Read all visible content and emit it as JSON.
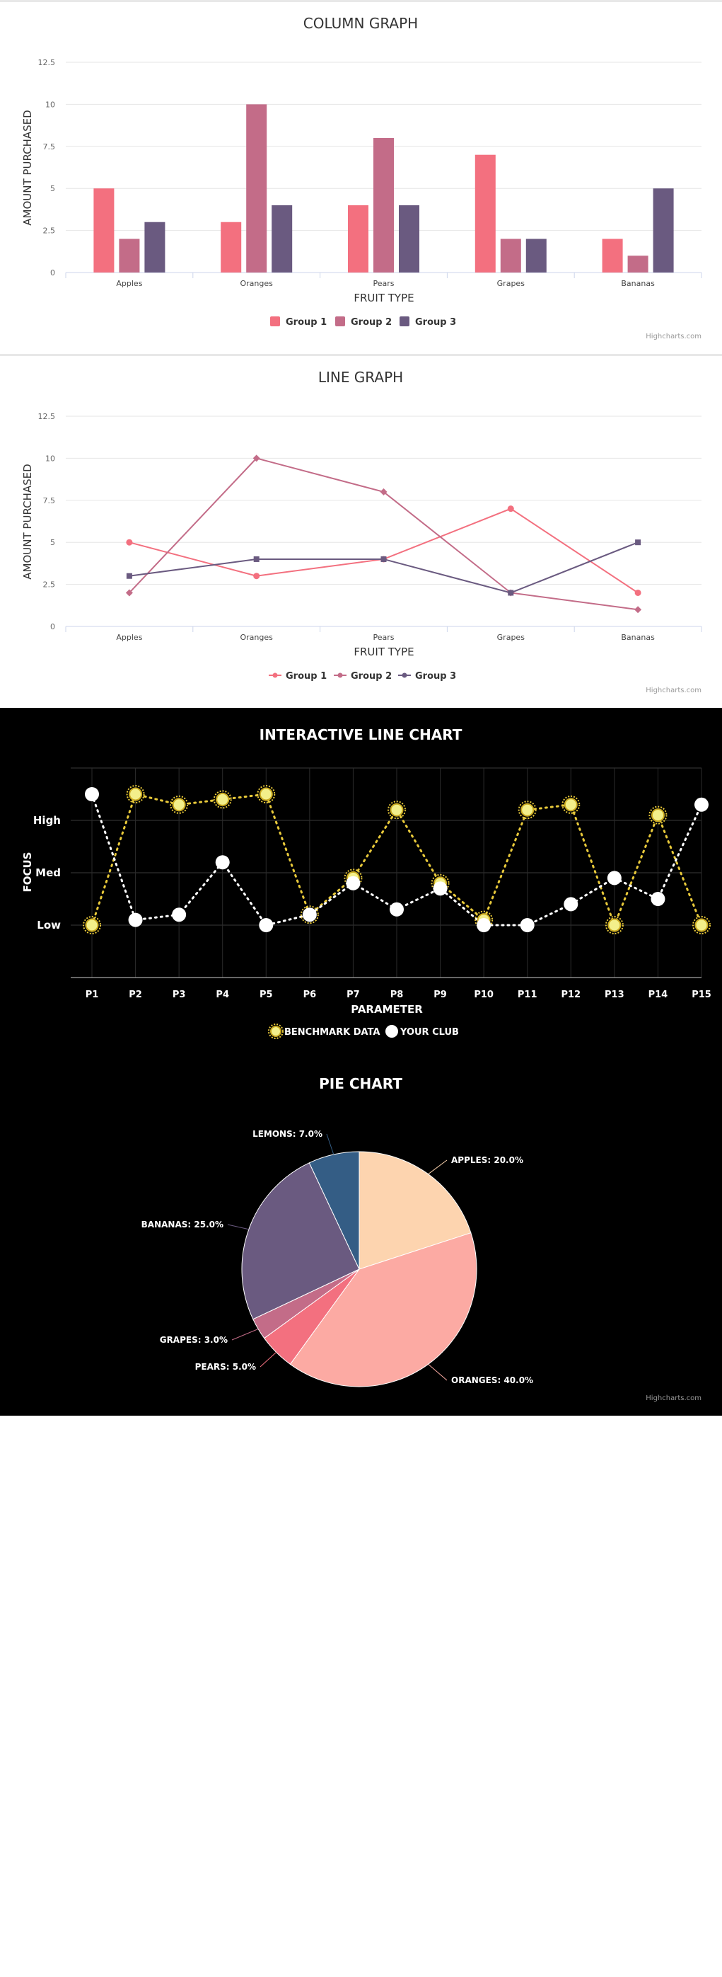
{
  "chart_data": [
    {
      "type": "bar",
      "title": "COLUMN GRAPH",
      "xlabel": "FRUIT TYPE",
      "ylabel": "AMOUNT PURCHASED",
      "categories": [
        "Apples",
        "Oranges",
        "Pears",
        "Grapes",
        "Bananas"
      ],
      "ylim": [
        0,
        12.5
      ],
      "yticks": [
        "0",
        "2.5",
        "5",
        "7.5",
        "10",
        "12.5"
      ],
      "grid": true,
      "legend_position": "bottom-center",
      "series": [
        {
          "name": "Group 1",
          "color": "#f3707f",
          "values": [
            5,
            3,
            4,
            7,
            2
          ]
        },
        {
          "name": "Group 2",
          "color": "#c36c88",
          "values": [
            2,
            10,
            8,
            2,
            1
          ]
        },
        {
          "name": "Group 3",
          "color": "#6a5a80",
          "values": [
            3,
            4,
            4,
            2,
            5
          ]
        }
      ],
      "credits": "Highcharts.com"
    },
    {
      "type": "line",
      "title": "LINE GRAPH",
      "xlabel": "FRUIT TYPE",
      "ylabel": "AMOUNT PURCHASED",
      "categories": [
        "Apples",
        "Oranges",
        "Pears",
        "Grapes",
        "Bananas"
      ],
      "ylim": [
        0,
        12.5
      ],
      "yticks": [
        "0",
        "2.5",
        "5",
        "7.5",
        "10",
        "12.5"
      ],
      "grid": true,
      "legend_position": "bottom-center",
      "series": [
        {
          "name": "Group 1",
          "color": "#f3707f",
          "marker": "circle",
          "values": [
            5,
            3,
            4,
            7,
            2
          ]
        },
        {
          "name": "Group 2",
          "color": "#c36c88",
          "marker": "diamond",
          "values": [
            2,
            10,
            8,
            2,
            1
          ]
        },
        {
          "name": "Group 3",
          "color": "#6a5a80",
          "marker": "square",
          "values": [
            3,
            4,
            4,
            2,
            5
          ]
        }
      ],
      "credits": "Highcharts.com"
    },
    {
      "type": "line",
      "title": "INTERACTIVE LINE CHART",
      "xlabel": "PARAMETER",
      "ylabel": "FOCUS",
      "categories": [
        "P1",
        "P2",
        "P3",
        "P4",
        "P5",
        "P6",
        "P7",
        "P8",
        "P9",
        "P10",
        "P11",
        "P12",
        "P13",
        "P14",
        "P15"
      ],
      "ylim": [
        0,
        4
      ],
      "yticks": [
        {
          "value": 1,
          "label": "Low"
        },
        {
          "value": 2,
          "label": "Med"
        },
        {
          "value": 3,
          "label": "High"
        }
      ],
      "grid": true,
      "legend_position": "bottom-center",
      "series": [
        {
          "name": "BENCHMARK DATA",
          "color": "#e8c93a",
          "values": [
            1,
            3.5,
            3.3,
            3.4,
            3.5,
            1.2,
            1.9,
            3.2,
            1.8,
            1.1,
            3.2,
            3.3,
            1,
            3.1,
            1
          ]
        },
        {
          "name": "YOUR CLUB",
          "color": "#ffffff",
          "values": [
            3.5,
            1.1,
            1.2,
            2.2,
            1,
            1.2,
            1.8,
            1.3,
            1.7,
            1,
            1,
            1.4,
            1.9,
            1.5,
            3.3
          ]
        }
      ]
    },
    {
      "type": "pie",
      "title": "PIE CHART",
      "slices": [
        {
          "label": "APPLES: 20.0%",
          "value": 20,
          "color": "#fdd4af"
        },
        {
          "label": "ORANGES: 40.0%",
          "value": 40,
          "color": "#fcaaa3"
        },
        {
          "label": "PEARS: 5.0%",
          "value": 5,
          "color": "#f3707f"
        },
        {
          "label": "GRAPES: 3.0%",
          "value": 3,
          "color": "#c36c88"
        },
        {
          "label": "BANANAS: 25.0%",
          "value": 25,
          "color": "#6a5a80"
        },
        {
          "label": "LEMONS: 7.0%",
          "value": 7,
          "color": "#345d85"
        }
      ],
      "credits": "Highcharts.com"
    }
  ]
}
